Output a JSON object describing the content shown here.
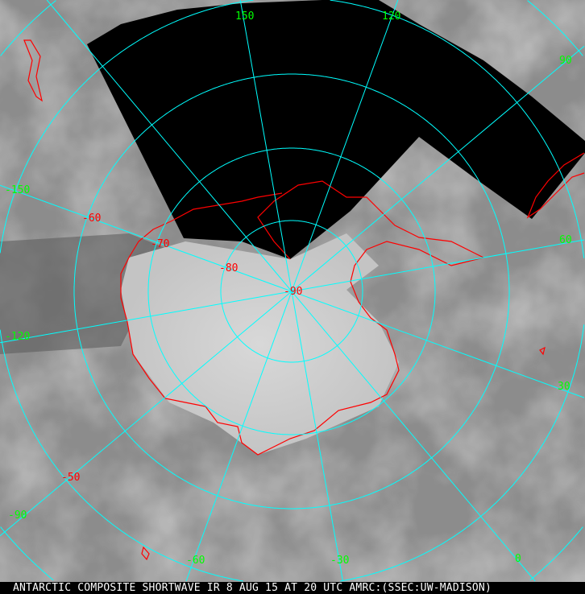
{
  "caption": "ANTARCTIC COMPOSITE SHORTWAVE IR 8 AUG 15 AT 20 UTC AMRC:(SSEC:UW-MADISON)",
  "caption_mark": "a",
  "latitude_labels": [
    "-50",
    "-60",
    "-70",
    "-80",
    "-90"
  ],
  "longitude_labels": [
    "150",
    "120",
    "90",
    "60",
    "30",
    "0",
    "-30",
    "-60",
    "-90",
    "-120",
    "-150"
  ],
  "colors": {
    "grid": "#00ffff",
    "coastline": "#ff0000",
    "longitude_label": "#00ff00",
    "latitude_label": "#ff0000",
    "no_data": "#000000"
  }
}
